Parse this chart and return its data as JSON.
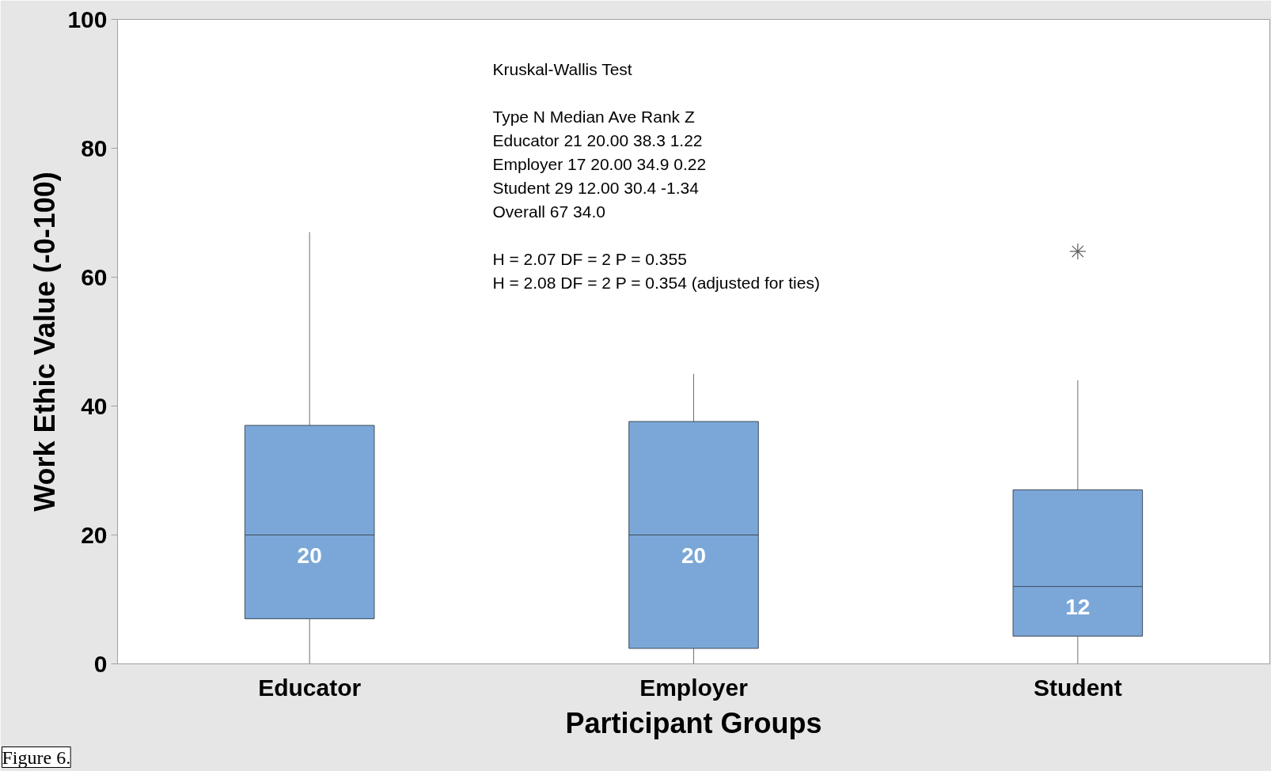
{
  "chart_data": {
    "type": "box",
    "xlabel": "Participant Groups",
    "ylabel": "Work Ethic Value (-0-100)",
    "categories": [
      "Educator",
      "Employer",
      "Student"
    ],
    "boxes": [
      {
        "low": 0,
        "q1": 7,
        "median": 20,
        "q3": 37,
        "high": 67
      },
      {
        "low": 0,
        "q1": 2.4,
        "median": 20,
        "q3": 37.6,
        "high": 45
      },
      {
        "low": 0,
        "q1": 4.3,
        "median": 12,
        "q3": 27,
        "high": 44,
        "outliers": [
          64
        ]
      }
    ],
    "color": "#7ba7d8",
    "value_labels": [
      "20",
      "20",
      "12"
    ],
    "ylim": [
      0,
      100
    ],
    "yticks": [
      0,
      20,
      40,
      60,
      80,
      100
    ],
    "annotations": [
      "Kruskal-Wallis Test",
      "Type        N   Median   Ave Rank       Z\nEducator  21    20.00        38.3   1.22\nEmployer  17    20.00        34.9   0.22\nStudent   29    12.00        30.4  -1.34\nOverall   67                 34.0",
      "H = 2.07   DF = 2   P = 0.355\nH = 2.08   DF = 2   P = 0.354   (adjusted for ties)",
      "Figure 6."
    ]
  }
}
